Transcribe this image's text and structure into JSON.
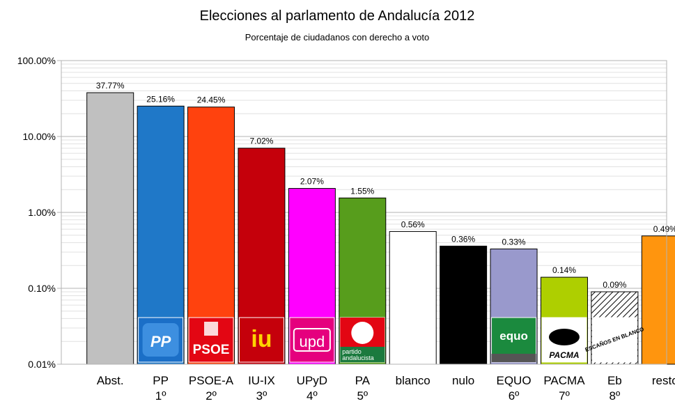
{
  "chart_data": {
    "type": "bar",
    "title": "Elecciones al parlamento de Andalucía 2012",
    "subtitle": "Porcentaje de ciudadanos con derecho a voto",
    "yscale": "log",
    "ylim": [
      0.01,
      100
    ],
    "y_ticks": [
      "0.01%",
      "0.10%",
      "1.00%",
      "10.00%",
      "100.00%"
    ],
    "grid": true,
    "legend": "none",
    "categories": [
      {
        "name": "Abst.",
        "rank": "",
        "logo": ""
      },
      {
        "name": "PP",
        "rank": "1º",
        "logo": "PP"
      },
      {
        "name": "PSOE-A",
        "rank": "2º",
        "logo": "PSOE"
      },
      {
        "name": "IU-IX",
        "rank": "3º",
        "logo": "iu"
      },
      {
        "name": "UPyD",
        "rank": "4º",
        "logo": "upd"
      },
      {
        "name": "PA",
        "rank": "5º",
        "logo": "partido andalucista"
      },
      {
        "name": "blanco",
        "rank": "",
        "logo": ""
      },
      {
        "name": "nulo",
        "rank": "",
        "logo": ""
      },
      {
        "name": "EQUO",
        "rank": "6º",
        "logo": "equo"
      },
      {
        "name": "PACMA",
        "rank": "7º",
        "logo": "PACMA"
      },
      {
        "name": "Eb",
        "rank": "8º",
        "logo": "ESCAÑOS EN BLANCO"
      },
      {
        "name": "resto",
        "rank": "",
        "logo": ""
      }
    ],
    "values": [
      37.77,
      25.16,
      24.45,
      7.02,
      2.07,
      1.55,
      0.56,
      0.36,
      0.33,
      0.14,
      0.09,
      0.49
    ],
    "data_labels": [
      "37.77%",
      "25.16%",
      "24.45%",
      "7.02%",
      "2.07%",
      "1.55%",
      "0.56%",
      "0.36%",
      "0.33%",
      "0.14%",
      "0.09%",
      "0.49%"
    ],
    "colors": [
      "#c0c0c0",
      "#1f78c8",
      "#ff420e",
      "#c5000b",
      "#ff00ff",
      "#579d1c",
      "#ffffff",
      "#000000",
      "#9999cc",
      "#aecf00",
      "hatch",
      "#ff950e"
    ]
  }
}
